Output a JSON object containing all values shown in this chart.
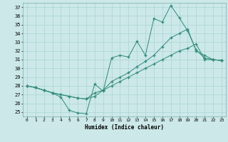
{
  "xlabel": "Humidex (Indice chaleur)",
  "x": [
    0,
    1,
    2,
    3,
    4,
    5,
    6,
    7,
    8,
    9,
    10,
    11,
    12,
    13,
    14,
    15,
    16,
    17,
    18,
    19,
    20,
    21,
    22,
    23
  ],
  "line1": [
    28.0,
    27.8,
    27.5,
    27.2,
    26.7,
    25.2,
    24.9,
    24.8,
    28.2,
    27.4,
    31.2,
    31.5,
    31.3,
    33.1,
    31.5,
    35.7,
    35.3,
    37.2,
    35.8,
    34.3,
    32.1,
    31.2,
    31.0,
    30.9
  ],
  "line2": [
    28.0,
    27.8,
    27.5,
    27.2,
    27.0,
    26.8,
    26.6,
    26.5,
    26.8,
    27.5,
    28.0,
    28.5,
    29.0,
    29.5,
    30.0,
    30.5,
    31.0,
    31.5,
    32.0,
    32.3,
    32.8,
    31.0,
    31.0,
    30.9
  ],
  "line3": [
    28.0,
    27.8,
    27.5,
    27.2,
    27.0,
    26.8,
    26.6,
    26.5,
    27.2,
    27.5,
    28.5,
    29.0,
    29.5,
    30.2,
    30.8,
    31.5,
    32.5,
    33.5,
    34.0,
    34.5,
    32.0,
    31.5,
    31.0,
    30.9
  ],
  "line_color": "#2e8b7a",
  "bg_color": "#cce8e8",
  "grid_color": "#aad4d4",
  "ylim": [
    24.5,
    37.5
  ],
  "yticks": [
    25,
    26,
    27,
    28,
    29,
    30,
    31,
    32,
    33,
    34,
    35,
    36,
    37
  ],
  "xticks": [
    0,
    1,
    2,
    3,
    4,
    5,
    6,
    7,
    8,
    9,
    10,
    11,
    12,
    13,
    14,
    15,
    16,
    17,
    18,
    19,
    20,
    21,
    22,
    23
  ]
}
